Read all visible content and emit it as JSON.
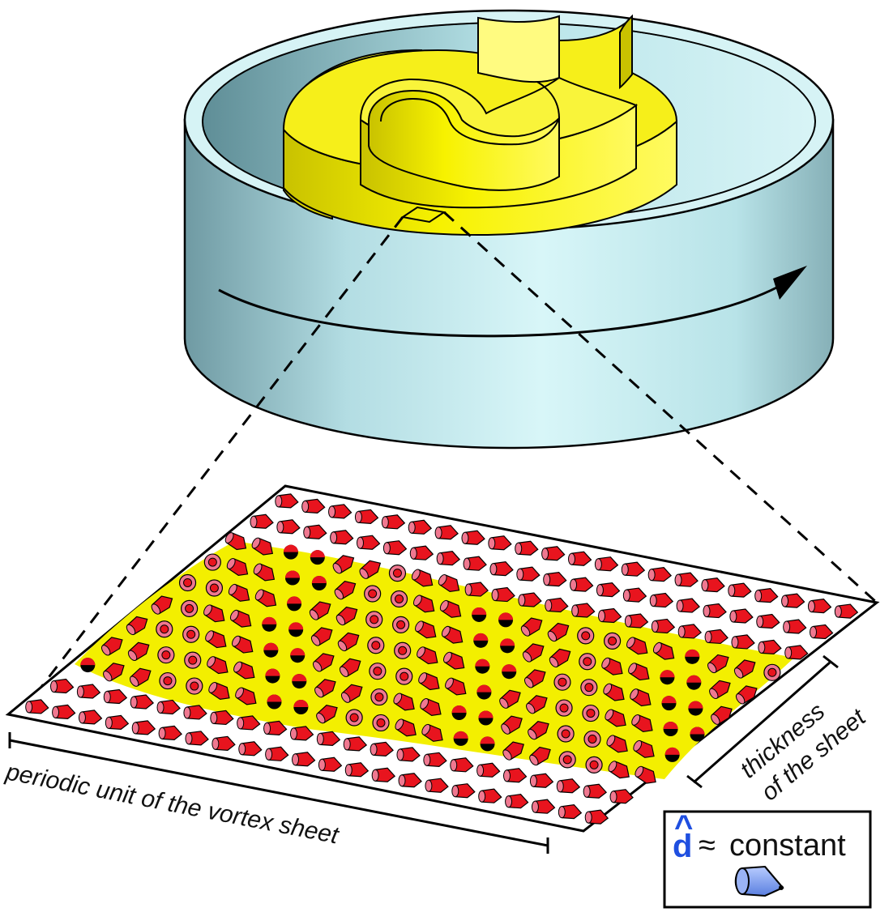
{
  "labels": {
    "periodic_unit": "periodic unit of the vortex sheet",
    "thickness_line1": "thickness",
    "thickness_line2": "of the sheet"
  },
  "legend": {
    "symbol": "d",
    "hat": "^",
    "approx": "≈",
    "text": "constant",
    "symbol_color": "#1f4fe0"
  },
  "colors": {
    "cylinder_side": "#c6eef2",
    "cylinder_shade": "#8fb8bf",
    "sheet_yellow": "#f4f000",
    "sheet_yellow_dark": "#b8b000",
    "spin_red": "#e8141e",
    "spin_pink": "#f07890",
    "spin_black": "#000000",
    "legend_spin": "#7a9cf0"
  },
  "icons": {
    "rotation_arrow": "curved-arrow-icon",
    "legend_cone": "cone-icon"
  }
}
